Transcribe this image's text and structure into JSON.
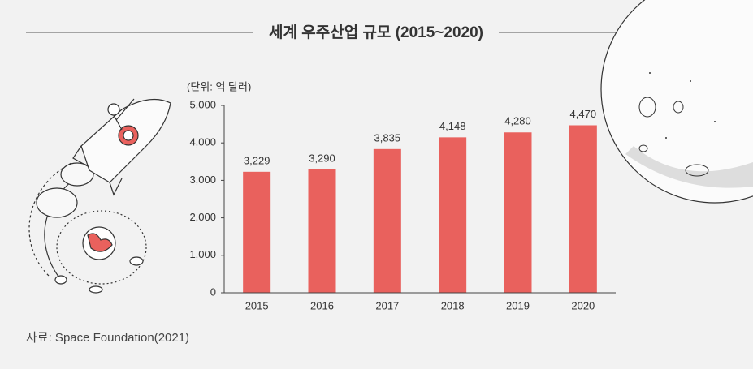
{
  "chart_data": {
    "type": "bar",
    "title": "세계 우주산업 규모 (2015~2020)",
    "unit_label": "(단위: 억 달러)",
    "source": "자료: Space Foundation(2021)",
    "categories": [
      "2015",
      "2016",
      "2017",
      "2018",
      "2019",
      "2020"
    ],
    "values": [
      3229,
      3290,
      3835,
      4148,
      4280,
      4470
    ],
    "value_labels": [
      "3,229",
      "3,290",
      "3,835",
      "4,148",
      "4,280",
      "4,470"
    ],
    "color": "#e9615d",
    "ylim": [
      0,
      5000
    ],
    "yticks": [
      0,
      {
        "value": 1000,
        "label": "1,000"
      },
      {
        "value": 2000,
        "label": "2,000"
      },
      {
        "value": 3000,
        "label": "3,000"
      },
      {
        "value": 4000,
        "label": "4,000"
      },
      {
        "value": 5000,
        "label": "5,000"
      }
    ],
    "grid": false
  }
}
